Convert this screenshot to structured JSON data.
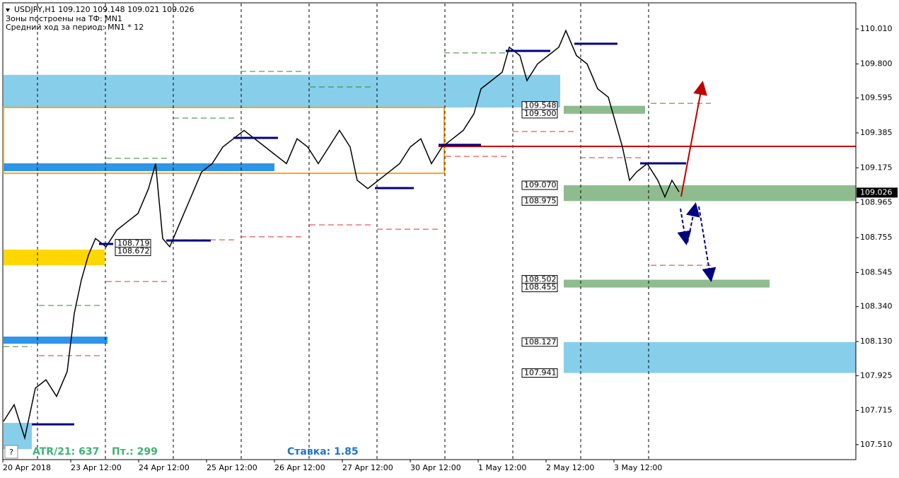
{
  "chart_data": {
    "type": "line",
    "title": "USDJPY,H1  109.120 109.148 109.021 109.026",
    "subtitles": [
      "Зоны построены на ТФ: MN1",
      "Средний ход за период: MN1 * 12"
    ],
    "annotations": {
      "atr": "ATR/21: 637",
      "pt": "Пт.: 299",
      "rate": "Ставка: 1.85",
      "help": "?"
    },
    "xlim": [
      0,
      302.5
    ],
    "xticks": [
      {
        "value": 1,
        "label": "20 Apr 2018"
      },
      {
        "value": 25,
        "label": "23 Apr 12:00"
      },
      {
        "value": 49,
        "label": "24 Apr 12:00"
      },
      {
        "value": 73,
        "label": "25 Apr 12:00"
      },
      {
        "value": 97,
        "label": "26 Apr 12:00"
      },
      {
        "value": 121,
        "label": "27 Apr 12:00"
      },
      {
        "value": 145,
        "label": "30 Apr 12:00"
      },
      {
        "value": 169,
        "label": "1 May 12:00"
      },
      {
        "value": 193,
        "label": "2 May 12:00"
      },
      {
        "value": 217,
        "label": "3 May 12:00"
      }
    ],
    "ylim": [
      107.42,
      110.163
    ],
    "yticks": [
      {
        "value": 110.01,
        "label": "110.010"
      },
      {
        "value": 109.8,
        "label": "109.800"
      },
      109.595,
      109.385,
      109.175,
      108.965,
      108.755,
      108.545,
      {
        "value": 108.34,
        "label": "108.340"
      },
      {
        "value": 108.13,
        "label": "108.130"
      },
      107.925,
      107.715,
      {
        "value": 107.51,
        "label": "107.510"
      }
    ],
    "last": 109.026,
    "series": [
      {
        "name": "USDJPY",
        "color": "#000000",
        "x": [
          1.25,
          5,
          8.75,
          12.5,
          16.25,
          20,
          23.75,
          26.25,
          28.75,
          31.25,
          33.75,
          37.5,
          41.25,
          45,
          48.75,
          52.5,
          55,
          57.5,
          60,
          63.75,
          67.5,
          71.25,
          75,
          78.75,
          82.5,
          86.25,
          90,
          93.75,
          97.5,
          101.25,
          105,
          108.75,
          112.5,
          116.25,
          120,
          123.75,
          126.25,
          130,
          133.75,
          137.5,
          141.25,
          145,
          148.75,
          152.5,
          156.25,
          160,
          163.75,
          167.5,
          170,
          173.75,
          177.5,
          180,
          183.75,
          186.25,
          190,
          193.75,
          197.5,
          200,
          203.75,
          207.5,
          211.25,
          215,
          217.5,
          220,
          222.5,
          225,
          228.75,
          232.5,
          235,
          237.5,
          240
        ],
        "values": [
          107.65,
          107.75,
          107.55,
          107.85,
          107.9,
          107.8,
          107.95,
          108.3,
          108.5,
          108.65,
          108.75,
          108.7,
          108.8,
          108.85,
          108.9,
          109.05,
          109.2,
          108.75,
          108.7,
          108.85,
          109.0,
          109.15,
          109.2,
          109.3,
          109.35,
          109.4,
          109.35,
          109.3,
          109.25,
          109.2,
          109.35,
          109.3,
          109.2,
          109.3,
          109.4,
          109.3,
          109.1,
          109.05,
          109.1,
          109.15,
          109.2,
          109.3,
          109.35,
          109.2,
          109.3,
          109.35,
          109.4,
          109.5,
          109.65,
          109.7,
          109.75,
          109.9,
          109.85,
          109.7,
          109.8,
          109.85,
          109.9,
          110.0,
          109.85,
          109.8,
          109.65,
          109.6,
          109.45,
          109.3,
          109.1,
          109.15,
          109.2,
          109.1,
          109.0,
          109.1,
          109.03
        ]
      }
    ],
    "zones": [
      {
        "x": [
          1.25,
          198
        ],
        "values": [
          109.734,
          109.538
        ],
        "fill": "#87ceeb"
      },
      {
        "x": [
          1.25,
          157
        ],
        "values": [
          109.538,
          109.142
        ],
        "fill": "none",
        "stroke": "#f5a623"
      },
      {
        "x": [
          1.25,
          97
        ],
        "values": [
          109.202,
          109.155
        ],
        "fill": "#2f95e6"
      },
      {
        "x": [
          1.25,
          37
        ],
        "values": [
          108.683,
          108.589
        ],
        "fill": "#ffd700"
      },
      {
        "x": [
          1.25,
          38
        ],
        "values": [
          108.16,
          108.117
        ],
        "fill": "#2f95e6"
      },
      {
        "x": [
          1.25,
          11.25
        ],
        "values": [
          107.641,
          107.483
        ],
        "fill": "#87ceeb"
      },
      {
        "x": [
          199.25,
          228
        ],
        "values": [
          109.548,
          109.5
        ],
        "fill": "#8fbc8f"
      },
      {
        "x": [
          199.25,
          302.5
        ],
        "values": [
          109.07,
          108.975
        ],
        "fill": "#8fbc8f"
      },
      {
        "x": [
          199.25,
          272
        ],
        "values": [
          108.502,
          108.455
        ],
        "fill": "#8fbc8f"
      },
      {
        "x": [
          199.25,
          302.5
        ],
        "values": [
          108.127,
          107.941
        ],
        "fill": "#87ceeb"
      }
    ],
    "price_labels": [
      {
        "value": 109.548,
        "label": "109.548",
        "x": 184.5
      },
      {
        "value": 109.5,
        "label": "109.500",
        "x": 184.5
      },
      {
        "value": 109.07,
        "label": "109.070",
        "x": 184.5
      },
      {
        "value": 108.975,
        "label": "108.975",
        "x": 184.5
      },
      {
        "value": 108.719,
        "label": "108.719",
        "x": 40.75
      },
      {
        "value": 108.672,
        "label": "108.672",
        "x": 40.75
      },
      {
        "value": 108.502,
        "label": "108.502",
        "x": 184.5
      },
      {
        "value": 108.455,
        "label": "108.455",
        "x": 184.5
      },
      {
        "value": 108.127,
        "label": "108.127",
        "x": 184.5
      },
      {
        "value": 107.941,
        "label": "107.941",
        "x": 184.5
      }
    ],
    "hline": {
      "value": 109.304,
      "x": [
        155,
        302.5
      ],
      "color": "#d00000"
    },
    "levels": [
      {
        "x": [
          85,
          107.5
        ],
        "value": 109.755,
        "color": "#2e8b2e"
      },
      {
        "x": [
          61.25,
          83.75
        ],
        "value": 109.474,
        "color": "#2e8b2e"
      },
      {
        "x": [
          37.5,
          60
        ],
        "value": 109.232,
        "color": "#2e8b2e"
      },
      {
        "x": [
          13.75,
          36.25
        ],
        "value": 108.347,
        "color": "#2e8b2e"
      },
      {
        "x": [
          1.25,
          11.25
        ],
        "value": 108.1,
        "color": "#2e8b2e"
      },
      {
        "x": [
          109.5,
          132
        ],
        "value": 109.661,
        "color": "#2e8b2e"
      },
      {
        "x": [
          157,
          179.5
        ],
        "value": 109.866,
        "color": "#2e8b2e"
      },
      {
        "x": [
          230,
          251.25
        ],
        "value": 109.563,
        "color": "#2e8b2e"
      },
      {
        "x": [
          181.25,
          203.75
        ],
        "value": 109.393,
        "color": "#e03030"
      },
      {
        "x": [
          205,
          227.5
        ],
        "value": 109.236,
        "color": "#e03030"
      },
      {
        "x": [
          157.5,
          180
        ],
        "value": 109.244,
        "color": "#e03030"
      },
      {
        "x": [
          133.25,
          155.75
        ],
        "value": 108.806,
        "color": "#e03030"
      },
      {
        "x": [
          109.5,
          132
        ],
        "value": 108.832,
        "color": "#e03030"
      },
      {
        "x": [
          85,
          107.5
        ],
        "value": 108.76,
        "color": "#e03030"
      },
      {
        "x": [
          61.25,
          83.75
        ],
        "value": 108.742,
        "color": "#e03030"
      },
      {
        "x": [
          37.5,
          60
        ],
        "value": 108.491,
        "color": "#e03030"
      },
      {
        "x": [
          13.75,
          36.25
        ],
        "value": 108.045,
        "color": "#e03030"
      },
      {
        "x": [
          230,
          251.25
        ],
        "value": 108.589,
        "color": "#e03030"
      }
    ],
    "pivots": [
      {
        "x": [
          11.25,
          26.25
        ],
        "value": 107.632
      },
      {
        "x": [
          35,
          40
        ],
        "value": 108.717
      },
      {
        "x": [
          58.75,
          74.5
        ],
        "value": 108.738
      },
      {
        "x": [
          82.5,
          98.25
        ],
        "value": 109.355
      },
      {
        "x": [
          132.5,
          146.25
        ],
        "value": 109.053
      },
      {
        "x": [
          155,
          170
        ],
        "value": 109.313
      },
      {
        "x": [
          178.75,
          194.5
        ],
        "value": 109.878
      },
      {
        "x": [
          203,
          218.25
        ],
        "value": 109.921
      },
      {
        "x": [
          226.25,
          242.5
        ],
        "value": 109.202
      }
    ],
    "pivot_color": "#000080"
  }
}
